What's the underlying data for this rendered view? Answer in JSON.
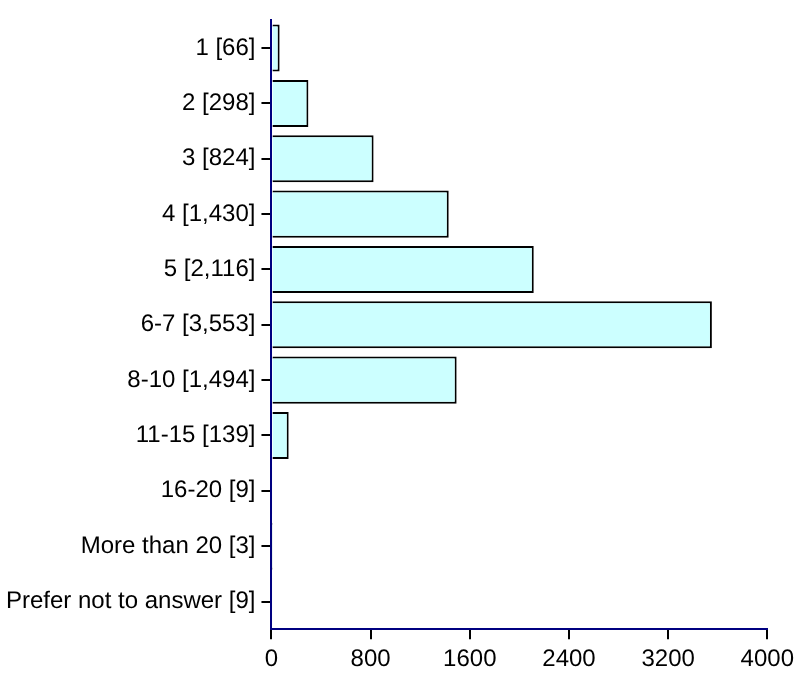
{
  "chart_data": {
    "type": "bar",
    "orientation": "horizontal",
    "categories": [
      "1 [66]",
      "2 [298]",
      "3 [824]",
      "4 [1,430]",
      "5 [2,116]",
      "6-7 [3,553]",
      "8-10 [1,494]",
      "11-15 [139]",
      "16-20 [9]",
      "More than 20 [3]",
      "Prefer not to answer [9]"
    ],
    "values": [
      66,
      298,
      824,
      1430,
      2116,
      3553,
      1494,
      139,
      9,
      3,
      9
    ],
    "color": "#ccffff",
    "xlim": [
      0,
      4000
    ],
    "xticks": [
      0,
      800,
      1600,
      2400,
      3200,
      4000
    ],
    "grid": false,
    "legend": false
  }
}
